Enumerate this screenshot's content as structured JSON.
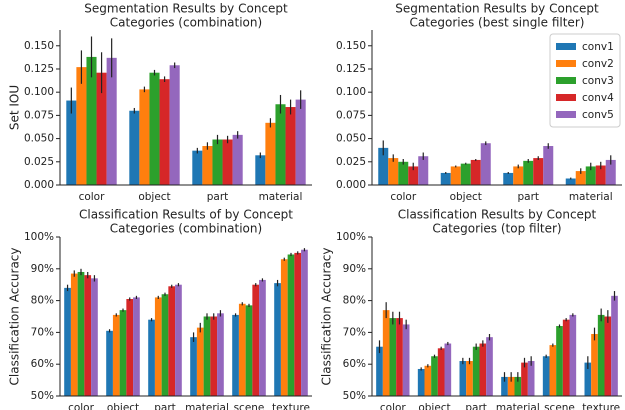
{
  "chart_data": [
    {
      "type": "bar",
      "title": [
        "Segmentation Results by Concept",
        "Categories (combination)"
      ],
      "ylabel": "Set IOU",
      "categories": [
        "color",
        "object",
        "part",
        "material"
      ],
      "ylim": [
        0,
        0.167
      ],
      "yticks": [
        {
          "value": 0,
          "label": "0.000"
        },
        {
          "value": 0.025,
          "label": "0.025"
        },
        {
          "value": 0.05,
          "label": "0.050"
        },
        {
          "value": 0.075,
          "label": "0.075"
        },
        {
          "value": 0.1,
          "label": "0.100"
        },
        {
          "value": 0.125,
          "label": "0.125"
        },
        {
          "value": 0.15,
          "label": "0.150"
        }
      ],
      "series": [
        {
          "color": "#1f77b4",
          "values": [
            0.091,
            0.08,
            0.037,
            0.032
          ],
          "errors": [
            0.014,
            0.003,
            0.003,
            0.003
          ]
        },
        {
          "color": "#ff7f0e",
          "values": [
            0.127,
            0.103,
            0.042,
            0.067
          ],
          "errors": [
            0.018,
            0.003,
            0.004,
            0.005
          ]
        },
        {
          "color": "#2ca02c",
          "values": [
            0.138,
            0.121,
            0.049,
            0.087
          ],
          "errors": [
            0.022,
            0.003,
            0.005,
            0.01
          ]
        },
        {
          "color": "#d62728",
          "values": [
            0.121,
            0.114,
            0.049,
            0.084
          ],
          "errors": [
            0.022,
            0.003,
            0.004,
            0.008
          ]
        },
        {
          "color": "#9467bd",
          "values": [
            0.137,
            0.129,
            0.054,
            0.092
          ],
          "errors": [
            0.021,
            0.003,
            0.004,
            0.01
          ]
        }
      ]
    },
    {
      "type": "bar",
      "title": [
        "Segmentation Results by Concept",
        "Categories (best single filter)"
      ],
      "categories": [
        "color",
        "object",
        "part",
        "material"
      ],
      "ylim": [
        0,
        0.167
      ],
      "legend": "upper right",
      "yticks": [
        {
          "value": 0,
          "label": "0.000"
        },
        {
          "value": 0.025,
          "label": "0.025"
        },
        {
          "value": 0.05,
          "label": "0.050"
        },
        {
          "value": 0.075,
          "label": "0.075"
        },
        {
          "value": 0.1,
          "label": "0.100"
        },
        {
          "value": 0.125,
          "label": "0.125"
        },
        {
          "value": 0.15,
          "label": "0.150"
        }
      ],
      "series": [
        {
          "name": "conv1",
          "color": "#1f77b4",
          "values": [
            0.04,
            0.013,
            0.013,
            0.007
          ],
          "errors": [
            0.008,
            0.001,
            0.001,
            0.001
          ]
        },
        {
          "name": "conv2",
          "color": "#ff7f0e",
          "values": [
            0.029,
            0.02,
            0.02,
            0.015
          ],
          "errors": [
            0.004,
            0.001,
            0.002,
            0.003
          ]
        },
        {
          "name": "conv3",
          "color": "#2ca02c",
          "values": [
            0.025,
            0.023,
            0.026,
            0.02
          ],
          "errors": [
            0.003,
            0.001,
            0.002,
            0.004
          ]
        },
        {
          "name": "conv4",
          "color": "#d62728",
          "values": [
            0.02,
            0.027,
            0.029,
            0.021
          ],
          "errors": [
            0.004,
            0.001,
            0.002,
            0.004
          ]
        },
        {
          "name": "conv5",
          "color": "#9467bd",
          "values": [
            0.031,
            0.045,
            0.042,
            0.027
          ],
          "errors": [
            0.004,
            0.002,
            0.003,
            0.005
          ]
        }
      ]
    },
    {
      "type": "bar",
      "title": [
        "Classification Results of by Concept",
        "Categories (combination)"
      ],
      "ylabel": "Classification Accuracy",
      "categories": [
        "color",
        "object",
        "part",
        "material",
        "scene",
        "texture"
      ],
      "ylim": [
        50,
        100
      ],
      "yticks": [
        {
          "value": 50,
          "label": "50%"
        },
        {
          "value": 60,
          "label": "60%"
        },
        {
          "value": 70,
          "label": "70%"
        },
        {
          "value": 80,
          "label": "80%"
        },
        {
          "value": 90,
          "label": "90%"
        },
        {
          "value": 100,
          "label": "100%"
        }
      ],
      "series": [
        {
          "color": "#1f77b4",
          "values": [
            84,
            70.5,
            74,
            68.5,
            75.5,
            85.5
          ],
          "errors": [
            1,
            0.5,
            0.5,
            1.5,
            0.5,
            1
          ]
        },
        {
          "color": "#ff7f0e",
          "values": [
            88.5,
            75.5,
            81,
            71.5,
            79,
            93
          ],
          "errors": [
            1,
            0.5,
            0.5,
            1.5,
            0.5,
            0.5
          ]
        },
        {
          "color": "#2ca02c",
          "values": [
            89,
            77,
            82,
            75,
            78.5,
            94.5
          ],
          "errors": [
            1,
            0.5,
            0.5,
            1,
            0.5,
            0.5
          ]
        },
        {
          "color": "#d62728",
          "values": [
            88,
            80.5,
            84.5,
            75,
            85,
            95
          ],
          "errors": [
            1,
            0.5,
            0.5,
            1,
            0.5,
            0.5
          ]
        },
        {
          "color": "#9467bd",
          "values": [
            87,
            81,
            85,
            76,
            86.5,
            96
          ],
          "errors": [
            1,
            0.5,
            0.5,
            1,
            0.5,
            0.5
          ]
        }
      ]
    },
    {
      "type": "bar",
      "title": [
        "Classification Results by Concept",
        "Categories (top filter)"
      ],
      "ylabel": "Classification Accuracy",
      "categories": [
        "color",
        "object",
        "part",
        "material",
        "scene",
        "texture"
      ],
      "ylim": [
        50,
        100
      ],
      "yticks": [
        {
          "value": 50,
          "label": "50%"
        },
        {
          "value": 60,
          "label": "60%"
        },
        {
          "value": 70,
          "label": "70%"
        },
        {
          "value": 80,
          "label": "80%"
        },
        {
          "value": 90,
          "label": "90%"
        },
        {
          "value": 100,
          "label": "100%"
        }
      ],
      "series": [
        {
          "color": "#1f77b4",
          "values": [
            65.5,
            58.5,
            61,
            56,
            62.5,
            60.5
          ],
          "errors": [
            2,
            0.5,
            1,
            1.5,
            0.5,
            2
          ]
        },
        {
          "color": "#ff7f0e",
          "values": [
            77,
            59.5,
            61,
            56,
            66,
            69.5
          ],
          "errors": [
            2.5,
            0.5,
            1,
            1.5,
            0.5,
            2
          ]
        },
        {
          "color": "#2ca02c",
          "values": [
            74.5,
            62.5,
            65.5,
            56,
            72,
            75.5
          ],
          "errors": [
            2,
            0.5,
            1,
            1.5,
            0.5,
            2
          ]
        },
        {
          "color": "#d62728",
          "values": [
            74.5,
            65,
            66.5,
            60.5,
            74,
            75
          ],
          "errors": [
            2,
            0.5,
            1,
            1.5,
            0.5,
            2
          ]
        },
        {
          "color": "#9467bd",
          "values": [
            72.5,
            66.5,
            68.5,
            61,
            75.5,
            81.5
          ],
          "errors": [
            1.5,
            0.5,
            1,
            1.5,
            0.5,
            1.5
          ]
        }
      ]
    }
  ]
}
